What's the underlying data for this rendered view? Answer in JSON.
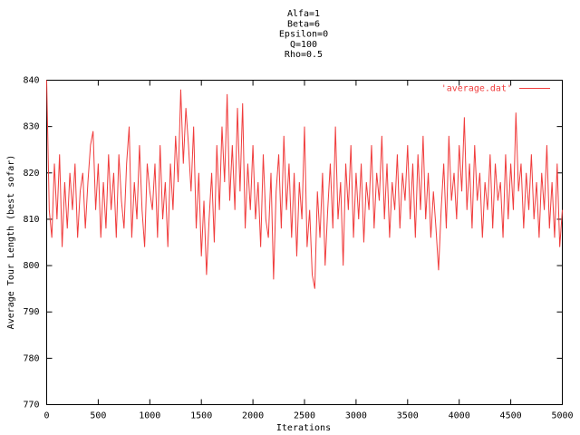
{
  "chart_data": {
    "type": "line",
    "title": [
      "Alfa=1",
      "Beta=6",
      "Epsilon=0",
      "Q=100",
      "Rho=0.5"
    ],
    "x_label": "Iterations",
    "y_label": "Average Tour Length (best sofar)",
    "xlim": [
      0,
      5000
    ],
    "ylim": [
      770,
      840
    ],
    "xticks": [
      0,
      500,
      1000,
      1500,
      2000,
      2500,
      3000,
      3500,
      4000,
      4500,
      5000
    ],
    "yticks": [
      770,
      780,
      790,
      800,
      810,
      820,
      830,
      840
    ],
    "legend": "top-right",
    "x": [
      0,
      25,
      50,
      75,
      100,
      125,
      150,
      175,
      200,
      225,
      250,
      275,
      300,
      325,
      350,
      375,
      400,
      425,
      450,
      475,
      500,
      525,
      550,
      575,
      600,
      625,
      650,
      675,
      700,
      725,
      750,
      775,
      800,
      825,
      850,
      875,
      900,
      925,
      950,
      975,
      1000,
      1025,
      1050,
      1075,
      1100,
      1125,
      1150,
      1175,
      1200,
      1225,
      1250,
      1275,
      1300,
      1325,
      1350,
      1375,
      1400,
      1425,
      1450,
      1475,
      1500,
      1525,
      1550,
      1575,
      1600,
      1625,
      1650,
      1675,
      1700,
      1725,
      1750,
      1775,
      1800,
      1825,
      1850,
      1875,
      1900,
      1925,
      1950,
      1975,
      2000,
      2025,
      2050,
      2075,
      2100,
      2125,
      2150,
      2175,
      2200,
      2225,
      2250,
      2275,
      2300,
      2325,
      2350,
      2375,
      2400,
      2425,
      2450,
      2475,
      2500,
      2525,
      2550,
      2575,
      2600,
      2625,
      2650,
      2675,
      2700,
      2725,
      2750,
      2775,
      2800,
      2825,
      2850,
      2875,
      2900,
      2925,
      2950,
      2975,
      3000,
      3025,
      3050,
      3075,
      3100,
      3125,
      3150,
      3175,
      3200,
      3225,
      3250,
      3275,
      3300,
      3325,
      3350,
      3375,
      3400,
      3425,
      3450,
      3475,
      3500,
      3525,
      3550,
      3575,
      3600,
      3625,
      3650,
      3675,
      3700,
      3725,
      3750,
      3775,
      3800,
      3825,
      3850,
      3875,
      3900,
      3925,
      3950,
      3975,
      4000,
      4025,
      4050,
      4075,
      4100,
      4125,
      4150,
      4175,
      4200,
      4225,
      4250,
      4275,
      4300,
      4325,
      4350,
      4375,
      4400,
      4425,
      4450,
      4475,
      4500,
      4525,
      4550,
      4575,
      4600,
      4625,
      4650,
      4675,
      4700,
      4725,
      4750,
      4775,
      4800,
      4825,
      4850,
      4875,
      4900,
      4925,
      4950,
      4975,
      5000
    ],
    "series": [
      {
        "name": "'average.dat'",
        "color": "#f03c3c",
        "values": [
          840,
          812,
          806,
          822,
          810,
          824,
          804,
          818,
          808,
          820,
          812,
          822,
          806,
          816,
          820,
          808,
          818,
          826,
          829,
          812,
          822,
          806,
          818,
          808,
          824,
          812,
          820,
          806,
          824,
          814,
          808,
          822,
          830,
          806,
          818,
          810,
          826,
          812,
          804,
          822,
          816,
          812,
          822,
          806,
          826,
          810,
          818,
          804,
          822,
          812,
          828,
          818,
          838,
          822,
          834,
          826,
          816,
          830,
          808,
          820,
          802,
          814,
          798,
          810,
          820,
          805,
          826,
          812,
          830,
          818,
          837,
          814,
          826,
          812,
          834,
          816,
          835,
          808,
          822,
          812,
          826,
          810,
          818,
          804,
          824,
          810,
          806,
          820,
          797,
          816,
          824,
          808,
          828,
          812,
          822,
          806,
          820,
          802,
          818,
          810,
          830,
          804,
          812,
          798,
          795,
          816,
          806,
          820,
          800,
          812,
          822,
          808,
          830,
          810,
          818,
          800,
          822,
          812,
          826,
          806,
          820,
          810,
          822,
          805,
          818,
          812,
          826,
          808,
          820,
          814,
          828,
          810,
          822,
          806,
          818,
          812,
          824,
          808,
          820,
          814,
          826,
          810,
          822,
          806,
          824,
          812,
          828,
          810,
          820,
          806,
          816,
          808,
          799,
          812,
          822,
          808,
          828,
          814,
          820,
          810,
          826,
          816,
          832,
          812,
          822,
          808,
          826,
          814,
          820,
          806,
          818,
          812,
          824,
          808,
          822,
          814,
          818,
          806,
          824,
          810,
          822,
          812,
          833,
          816,
          822,
          808,
          820,
          812,
          824,
          810,
          818,
          806,
          820,
          812,
          826,
          808,
          818,
          806,
          822,
          804,
          812
        ]
      }
    ]
  }
}
